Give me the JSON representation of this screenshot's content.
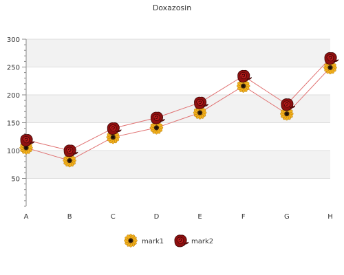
{
  "chart_data": {
    "type": "line",
    "title": "Doxazosin",
    "xlabel": "",
    "ylabel": "",
    "categories": [
      "A",
      "B",
      "C",
      "D",
      "E",
      "F",
      "G",
      "H"
    ],
    "ylim": [
      0,
      300
    ],
    "yticks": [
      50,
      100,
      150,
      200,
      250,
      300
    ],
    "grid": true,
    "legend_position": "bottom",
    "series": [
      {
        "name": "mark1",
        "values": [
          105,
          82,
          124,
          141,
          168,
          216,
          166,
          249
        ],
        "line_color": "#e07070",
        "marker": "sunflower-icon"
      },
      {
        "name": "mark2",
        "values": [
          119,
          100,
          140,
          159,
          186,
          234,
          183,
          266
        ],
        "line_color": "#e07070",
        "marker": "rose-icon"
      }
    ],
    "colors": {
      "band": "#f2f2f2",
      "gridline": "#dddddd",
      "axis": "#888888"
    }
  }
}
